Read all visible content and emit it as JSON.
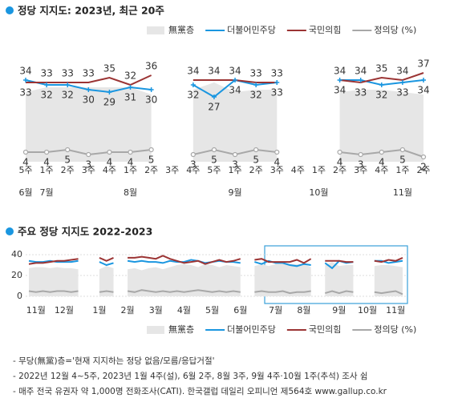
{
  "chart_data": [
    {
      "type": "line",
      "title": "정당 지지도: 2023년, 최근 20주",
      "categories": [
        "5주",
        "1주",
        "2주",
        "3주",
        "4주",
        "1주",
        "2주",
        "3주",
        "4주",
        "5주",
        "1주",
        "2주",
        "3주",
        "4주",
        "1주",
        "2주",
        "3주",
        "4주",
        "1주",
        "2주"
      ],
      "month_labels": [
        "6월",
        "7월",
        null,
        null,
        null,
        "8월",
        null,
        null,
        null,
        null,
        "9월",
        null,
        null,
        null,
        "10월",
        null,
        null,
        null,
        "11월",
        null
      ],
      "ylim": [
        0,
        40
      ],
      "show_values": true,
      "series": [
        {
          "name": "無黨층",
          "type": "area",
          "color": "#e6e6e6",
          "values": [
            29,
            31,
            31,
            31,
            31,
            31,
            28,
            null,
            30,
            33,
            29,
            30,
            30,
            null,
            null,
            29,
            30,
            30,
            29,
            28
          ]
        },
        {
          "name": "더불어민주당",
          "type": "line",
          "color": "#1a96e0",
          "values": [
            34,
            32,
            32,
            30,
            29,
            31,
            30,
            null,
            32,
            27,
            34,
            32,
            33,
            null,
            null,
            34,
            34,
            32,
            33,
            34
          ]
        },
        {
          "name": "국민의힘",
          "type": "line",
          "color": "#9b3434",
          "values": [
            33,
            33,
            33,
            33,
            35,
            32,
            36,
            null,
            34,
            34,
            34,
            33,
            33,
            null,
            null,
            34,
            33,
            35,
            34,
            37
          ]
        },
        {
          "name": "정의당 (%)",
          "type": "line",
          "color": "#a8a8a8",
          "values": [
            4,
            4,
            5,
            3,
            4,
            4,
            5,
            null,
            3,
            5,
            3,
            5,
            4,
            null,
            null,
            4,
            3,
            4,
            5,
            2
          ]
        }
      ]
    },
    {
      "type": "line",
      "title": "주요 정당 지지도 2022-2023",
      "categories": [
        null,
        "11월",
        null,
        null,
        null,
        "12월",
        null,
        null,
        null,
        null,
        "1월",
        null,
        null,
        null,
        "2월",
        null,
        null,
        null,
        "3월",
        null,
        null,
        null,
        "4월",
        null,
        null,
        null,
        "5월",
        null,
        null,
        null,
        "6월",
        null,
        null,
        null,
        null,
        "7월",
        null,
        null,
        null,
        "8월",
        null,
        null,
        null,
        null,
        "9월",
        null,
        null,
        null,
        "10월",
        null,
        null,
        null,
        "11월",
        null
      ],
      "ylim": [
        0,
        40
      ],
      "yticks": [
        0,
        20,
        40
      ],
      "grid": true,
      "series": [
        {
          "name": "無黨층",
          "type": "area",
          "color": "#e6e6e6",
          "values": [
            27,
            28,
            28,
            27,
            28,
            27,
            27,
            26,
            null,
            null,
            26,
            29,
            27,
            null,
            26,
            27,
            25,
            27,
            28,
            26,
            28,
            30,
            31,
            30,
            28,
            31,
            30,
            28,
            30,
            29,
            28,
            null,
            29,
            31,
            29,
            31,
            31,
            31,
            31,
            31,
            28,
            null,
            30,
            33,
            29,
            30,
            30,
            null,
            null,
            29,
            30,
            30,
            29,
            28
          ]
        },
        {
          "name": "더불어민주당",
          "type": "line",
          "color": "#1a96e0",
          "values": [
            34,
            33,
            33,
            34,
            33,
            33,
            33,
            34,
            null,
            null,
            33,
            30,
            32,
            null,
            34,
            33,
            34,
            33,
            33,
            32,
            34,
            33,
            33,
            35,
            34,
            32,
            33,
            34,
            33,
            33,
            32,
            null,
            33,
            31,
            34,
            32,
            32,
            30,
            29,
            31,
            30,
            null,
            32,
            27,
            34,
            32,
            33,
            null,
            null,
            34,
            34,
            32,
            33,
            34
          ]
        },
        {
          "name": "국민의힘",
          "type": "line",
          "color": "#9b3434",
          "values": [
            31,
            32,
            32,
            33,
            34,
            34,
            35,
            36,
            null,
            null,
            37,
            34,
            37,
            null,
            37,
            37,
            38,
            37,
            36,
            39,
            36,
            34,
            32,
            33,
            34,
            31,
            33,
            35,
            33,
            34,
            36,
            null,
            35,
            36,
            33,
            33,
            33,
            33,
            35,
            32,
            36,
            null,
            34,
            34,
            34,
            33,
            33,
            null,
            null,
            34,
            33,
            35,
            34,
            37
          ]
        },
        {
          "name": "정의당 (%)",
          "type": "line",
          "color": "#a8a8a8",
          "values": [
            5,
            4,
            5,
            4,
            5,
            5,
            4,
            5,
            null,
            null,
            4,
            5,
            4,
            null,
            5,
            4,
            6,
            5,
            4,
            5,
            4,
            5,
            4,
            5,
            6,
            5,
            4,
            5,
            4,
            5,
            4,
            null,
            4,
            5,
            4,
            4,
            5,
            3,
            4,
            4,
            5,
            null,
            3,
            5,
            3,
            5,
            4,
            null,
            null,
            4,
            3,
            4,
            5,
            2
          ]
        }
      ]
    }
  ],
  "notes": [
    "- 무당(無黨)층='현재 지지하는 정당 없음/모름/응답거절'",
    "- 2022년 12월 4~5주, 2023년 1월 4주(설), 6월 2주, 8월 3주, 9월 4주·10월 1주(추석) 조사 쉼",
    "- 매주 전국 유권자 약 1,000명 전화조사(CATI). 한국갤럽 데일리 오피니언 제564호 www.gallup.co.kr"
  ]
}
